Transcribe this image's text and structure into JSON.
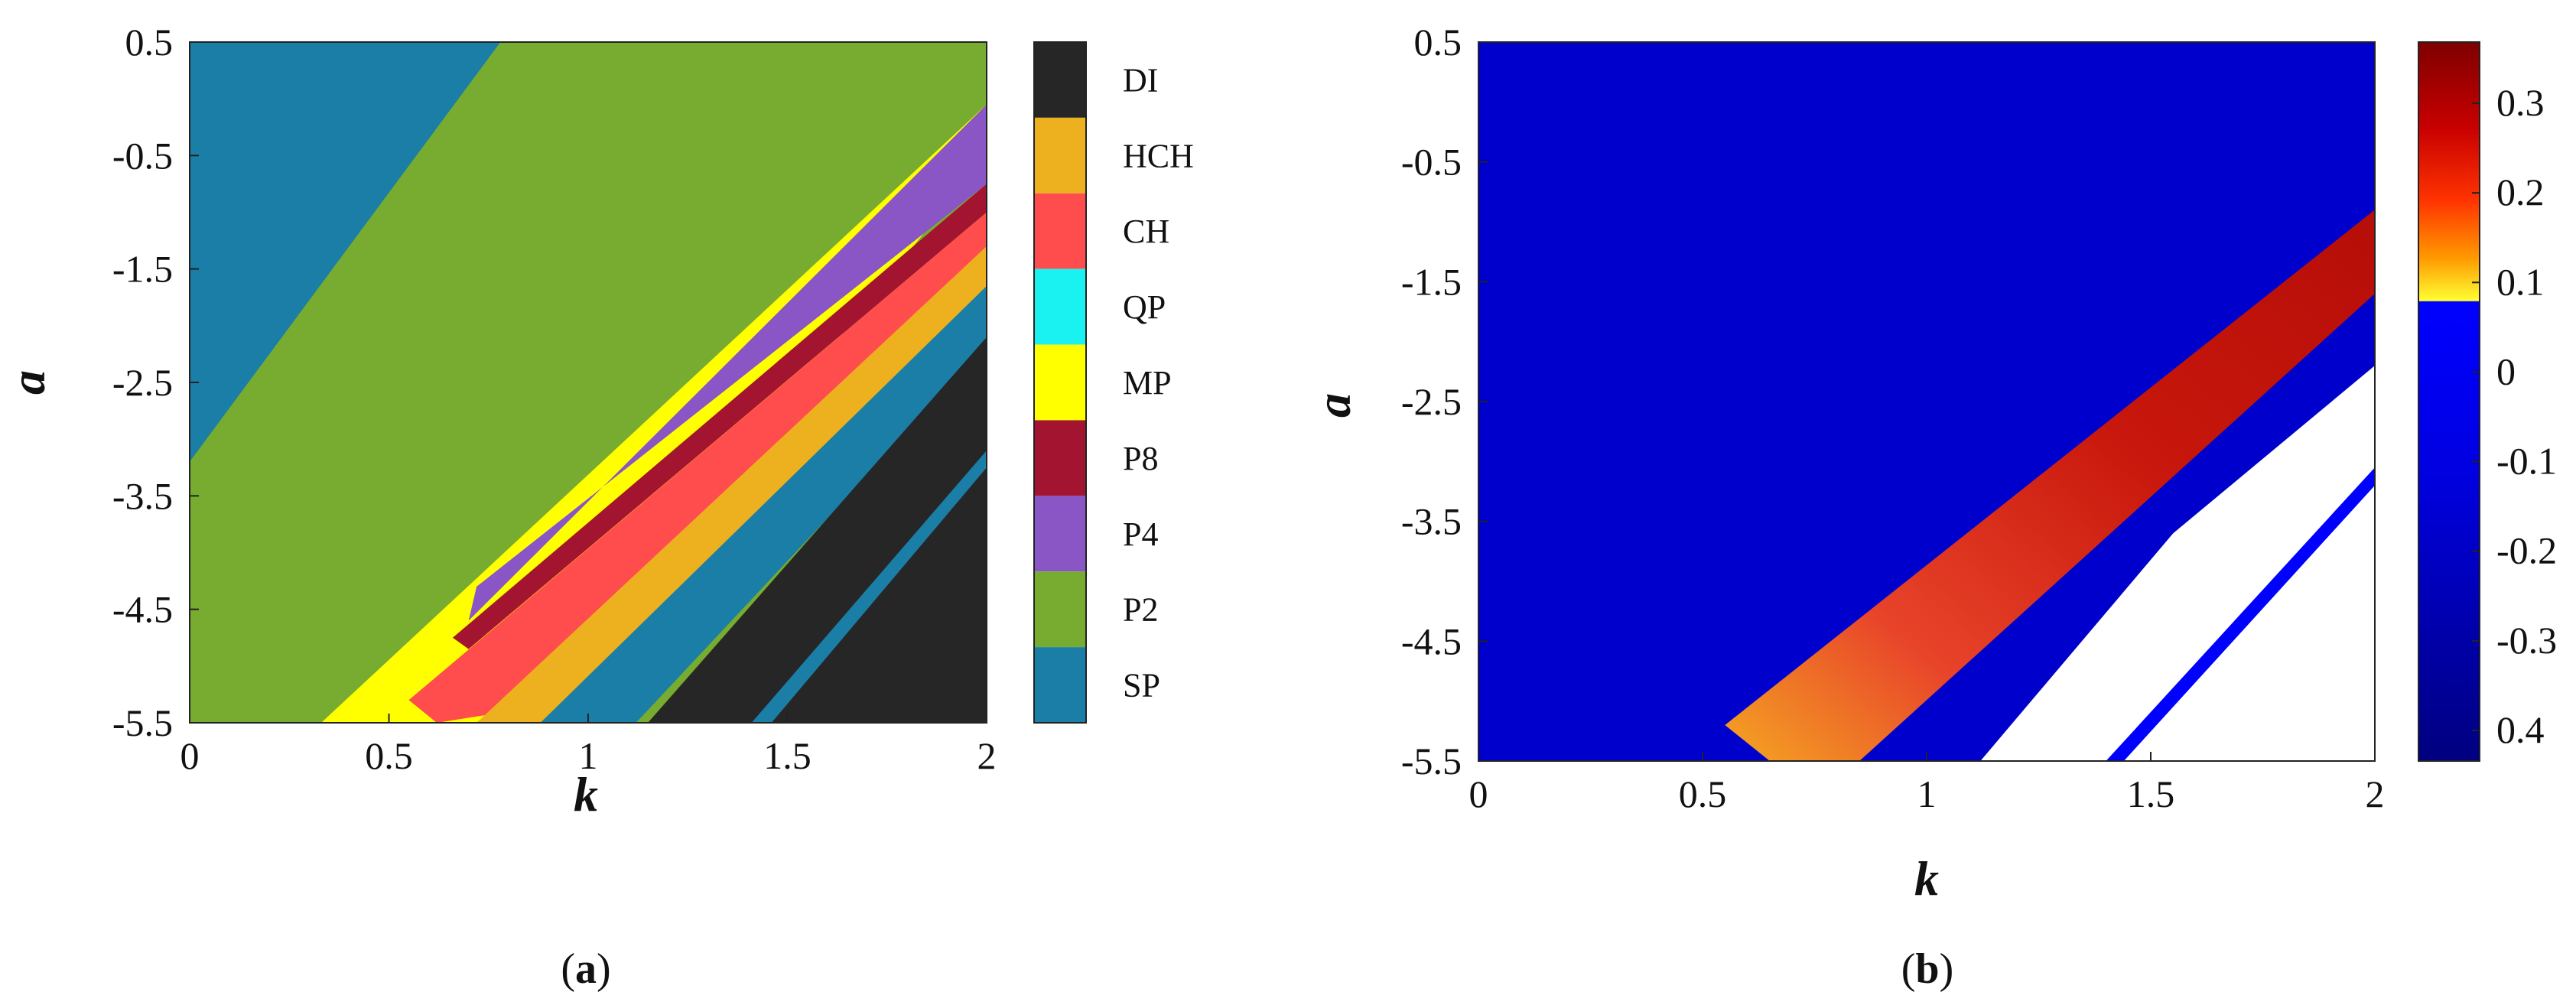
{
  "chart_data": [
    {
      "panel": "(a)",
      "type": "heatmap",
      "xlabel": "k",
      "ylabel": "a",
      "xlim": [
        0,
        2
      ],
      "ylim": [
        -5.5,
        0.5
      ],
      "xticks": [
        "0",
        "0.5",
        "1",
        "1.5",
        "2"
      ],
      "yticks": [
        "0.5",
        "-0.5",
        "-1.5",
        "-2.5",
        "-3.5",
        "-4.5",
        "-5.5"
      ],
      "legend_placement": "right colorbar",
      "categories": [
        {
          "label": "DI",
          "color": "#262626"
        },
        {
          "label": "HCH",
          "color": "#EDB120"
        },
        {
          "label": "CH",
          "color": "#FF4D4D"
        },
        {
          "label": "QP",
          "color": "#1AF2F2"
        },
        {
          "label": "MP",
          "color": "#FFFF00"
        },
        {
          "label": "P8",
          "color": "#A2142F"
        },
        {
          "label": "P4",
          "color": "#8A55C5"
        },
        {
          "label": "P2",
          "color": "#77AC30"
        },
        {
          "label": "SP",
          "color": "#1A7EA6"
        }
      ],
      "regions": [
        {
          "label": "SP",
          "boundary": [
            [
              0,
              0.5
            ],
            [
              0.78,
              0.5
            ],
            [
              0,
              -3.2
            ]
          ]
        },
        {
          "label": "P2",
          "boundary": [
            [
              0.78,
              0.5
            ],
            [
              2,
              0.5
            ],
            [
              2,
              -0.05
            ],
            [
              0.33,
              -5.5
            ],
            [
              0,
              -5.5
            ],
            [
              0,
              -3.2
            ]
          ]
        },
        {
          "label": "MP",
          "boundary": [
            [
              2,
              -0.05
            ],
            [
              2,
              -0.5
            ],
            [
              0.85,
              -5.5
            ],
            [
              0.33,
              -5.5
            ]
          ]
        },
        {
          "label": "P4",
          "boundary": [
            [
              2,
              -0.05
            ],
            [
              2,
              -0.75
            ],
            [
              0.72,
              -4.3
            ],
            [
              0.7,
              -4.6
            ]
          ]
        },
        {
          "label": "P8",
          "boundary": [
            [
              2,
              -0.75
            ],
            [
              2,
              -1.0
            ],
            [
              0.7,
              -4.85
            ],
            [
              0.66,
              -4.75
            ]
          ]
        },
        {
          "label": "CH",
          "boundary": [
            [
              2,
              -1.0
            ],
            [
              2,
              -1.65
            ],
            [
              0.8,
              -5.4
            ],
            [
              0.62,
              -5.5
            ],
            [
              0.55,
              -5.3
            ]
          ]
        },
        {
          "label": "HCH",
          "boundary": [
            [
              2,
              -1.3
            ],
            [
              2,
              -1.9
            ],
            [
              0.97,
              -5.5
            ],
            [
              0.72,
              -5.5
            ]
          ]
        },
        {
          "label": "SP",
          "boundary": [
            [
              2,
              -1.65
            ],
            [
              2,
              -2.2
            ],
            [
              1.12,
              -5.5
            ],
            [
              0.88,
              -5.5
            ]
          ]
        },
        {
          "label": "DI",
          "boundary": [
            [
              2,
              -2.1
            ],
            [
              2,
              -5.5
            ],
            [
              1.15,
              -5.5
            ]
          ]
        },
        {
          "label": "SP",
          "boundary": [
            [
              2,
              -3.1
            ],
            [
              2,
              -3.25
            ],
            [
              1.46,
              -5.5
            ],
            [
              1.41,
              -5.5
            ]
          ]
        }
      ]
    },
    {
      "panel": "(b)",
      "type": "heatmap",
      "xlabel": "k",
      "ylabel": "a",
      "xlim": [
        0,
        2
      ],
      "ylim": [
        -5.5,
        0.5
      ],
      "xticks": [
        "0",
        "0.5",
        "1",
        "1.5",
        "2"
      ],
      "yticks": [
        "0.5",
        "-0.5",
        "-1.5",
        "-2.5",
        "-3.5",
        "-4.5",
        "-5.5"
      ],
      "colorbar": {
        "placement": "right",
        "ticks": [
          "0.3",
          "0.2",
          "0.1",
          "0",
          "-0.1",
          "-0.2",
          "-0.3",
          "0.4"
        ]
      },
      "regions": [
        {
          "label": "negative",
          "color": "#0000CC",
          "boundary": [
            [
              0,
              0.5
            ],
            [
              2,
              0.5
            ],
            [
              2,
              -5.5
            ],
            [
              0,
              -5.5
            ]
          ]
        },
        {
          "label": "positive",
          "color": "#C8170C",
          "boundary": [
            [
              2,
              -0.9
            ],
            [
              2,
              -1.6
            ],
            [
              0.85,
              -5.5
            ],
            [
              0.65,
              -5.5
            ],
            [
              0.55,
              -5.2
            ]
          ]
        },
        {
          "label": "undefined",
          "color": "#FFFFFF",
          "boundary": [
            [
              2,
              -2.2
            ],
            [
              2,
              -5.5
            ],
            [
              1.12,
              -5.5
            ],
            [
              1.55,
              -3.6
            ]
          ]
        },
        {
          "label": "negative",
          "color": "#0000FF",
          "boundary": [
            [
              2,
              -3.05
            ],
            [
              2,
              -3.2
            ],
            [
              1.44,
              -5.5
            ],
            [
              1.4,
              -5.5
            ]
          ]
        }
      ]
    }
  ],
  "captions": {
    "a": {
      "open": "(",
      "letter": "a",
      "close": ")"
    },
    "b": {
      "open": "(",
      "letter": "b",
      "close": ")"
    }
  }
}
